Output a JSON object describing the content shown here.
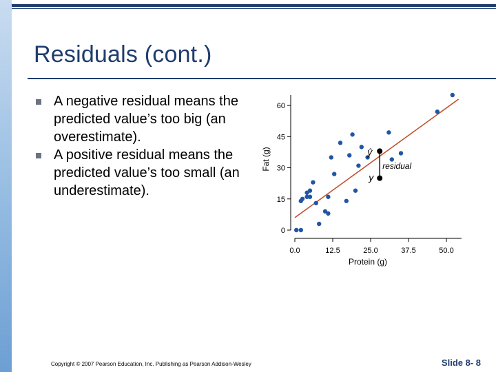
{
  "slide": {
    "title": "Residuals (cont.)",
    "bullets": [
      "A negative residual means the predicted value’s too big (an overestimate).",
      "A positive residual means the predicted value’s too small (an underestimate)."
    ],
    "footer": {
      "copyright": "Copyright © 2007 Pearson Education, Inc. Publishing as Pearson Addison-Wesley",
      "slide_number": "Slide 8- 8"
    },
    "colors": {
      "title": "#1f3d6e",
      "points": "#2255a4",
      "line": "#c0502e"
    }
  },
  "chart_data": {
    "type": "scatter",
    "xlabel": "Protein (g)",
    "ylabel": "Fat (g)",
    "xlim": [
      0,
      55
    ],
    "ylim": [
      0,
      65
    ],
    "x_ticks": [
      "0.0",
      "12.5",
      "25.0",
      "37.5",
      "50.0"
    ],
    "x_tick_values": [
      0,
      12.5,
      25,
      37.5,
      50
    ],
    "y_ticks": [
      "0",
      "15",
      "30",
      "45",
      "60"
    ],
    "y_tick_values": [
      0,
      15,
      30,
      45,
      60
    ],
    "grid": false,
    "points": [
      {
        "x": 0.5,
        "y": 0
      },
      {
        "x": 2,
        "y": 0
      },
      {
        "x": 2,
        "y": 14
      },
      {
        "x": 2.5,
        "y": 15
      },
      {
        "x": 4,
        "y": 16
      },
      {
        "x": 4,
        "y": 18
      },
      {
        "x": 5,
        "y": 19
      },
      {
        "x": 5,
        "y": 16
      },
      {
        "x": 6,
        "y": 23
      },
      {
        "x": 7,
        "y": 13
      },
      {
        "x": 8,
        "y": 3
      },
      {
        "x": 10,
        "y": 9
      },
      {
        "x": 11,
        "y": 8
      },
      {
        "x": 11,
        "y": 16
      },
      {
        "x": 12,
        "y": 35
      },
      {
        "x": 13,
        "y": 27
      },
      {
        "x": 15,
        "y": 42
      },
      {
        "x": 17,
        "y": 14
      },
      {
        "x": 18,
        "y": 36
      },
      {
        "x": 19,
        "y": 46
      },
      {
        "x": 20,
        "y": 19
      },
      {
        "x": 21,
        "y": 31
      },
      {
        "x": 22,
        "y": 40
      },
      {
        "x": 24,
        "y": 35
      },
      {
        "x": 31,
        "y": 47
      },
      {
        "x": 32,
        "y": 34
      },
      {
        "x": 35,
        "y": 37
      },
      {
        "x": 47,
        "y": 57
      },
      {
        "x": 52,
        "y": 65
      }
    ],
    "regression_line": [
      {
        "x": 0,
        "y": 6
      },
      {
        "x": 54,
        "y": 63
      }
    ],
    "highlight": {
      "x": 28,
      "y_observed": 25,
      "y_predicted": 38,
      "label_predicted": "ŷ",
      "label_observed": "y",
      "label_residual": "residual"
    }
  }
}
